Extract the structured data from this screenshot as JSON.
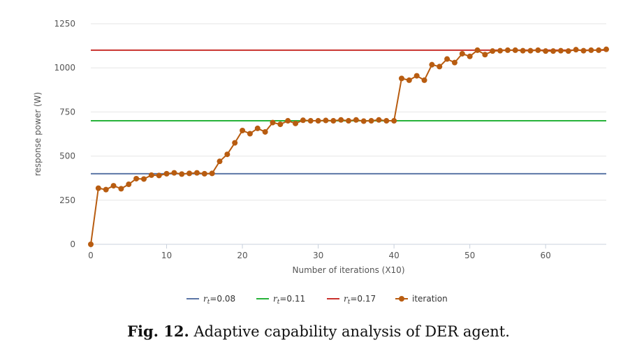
{
  "chart_data": {
    "type": "line",
    "title": "",
    "xlabel": "Number of iterations (X10)",
    "ylabel": "response power (W)",
    "xlim": [
      0,
      68
    ],
    "ylim": [
      0,
      1250
    ],
    "xticks": [
      0,
      10,
      20,
      30,
      40,
      50,
      60
    ],
    "yticks": [
      0,
      250,
      500,
      750,
      1000,
      1250
    ],
    "grid": true,
    "legend_position": "bottom-center",
    "reference_lines": [
      {
        "symbol": "r",
        "subscript": "t",
        "value_text": "=0.08",
        "y": 400,
        "color": "#5b76a6"
      },
      {
        "symbol": "r",
        "subscript": "t",
        "value_text": "=0.11",
        "y": 700,
        "color": "#27b33a"
      },
      {
        "symbol": "r",
        "subscript": "t",
        "value_text": "=0.17",
        "y": 1100,
        "color": "#c9302c"
      }
    ],
    "series": [
      {
        "name": "iteration",
        "color": "#b85c10",
        "x": [
          0,
          1,
          2,
          3,
          4,
          5,
          6,
          7,
          8,
          9,
          10,
          11,
          12,
          13,
          14,
          15,
          16,
          17,
          18,
          19,
          20,
          21,
          22,
          23,
          24,
          25,
          26,
          27,
          28,
          29,
          30,
          31,
          32,
          33,
          34,
          35,
          36,
          37,
          38,
          39,
          40,
          41,
          42,
          43,
          44,
          45,
          46,
          47,
          48,
          49,
          50,
          51,
          52,
          53,
          54,
          55,
          56,
          57,
          58,
          59,
          60,
          61,
          62,
          63,
          64,
          65,
          66,
          67,
          68
        ],
        "values": [
          0,
          318,
          310,
          332,
          315,
          340,
          372,
          370,
          392,
          390,
          400,
          405,
          398,
          402,
          405,
          400,
          402,
          470,
          510,
          575,
          645,
          627,
          657,
          637,
          690,
          680,
          700,
          685,
          703,
          700,
          700,
          702,
          700,
          705,
          700,
          705,
          698,
          700,
          705,
          700,
          700,
          940,
          930,
          955,
          930,
          1018,
          1007,
          1050,
          1030,
          1080,
          1065,
          1100,
          1075,
          1095,
          1097,
          1100,
          1100,
          1097,
          1097,
          1100,
          1095,
          1095,
          1097,
          1095,
          1103,
          1097,
          1100,
          1100,
          1105
        ]
      }
    ]
  },
  "caption": {
    "label": "Fig. 12.",
    "text": "Adaptive capability analysis of DER agent."
  }
}
